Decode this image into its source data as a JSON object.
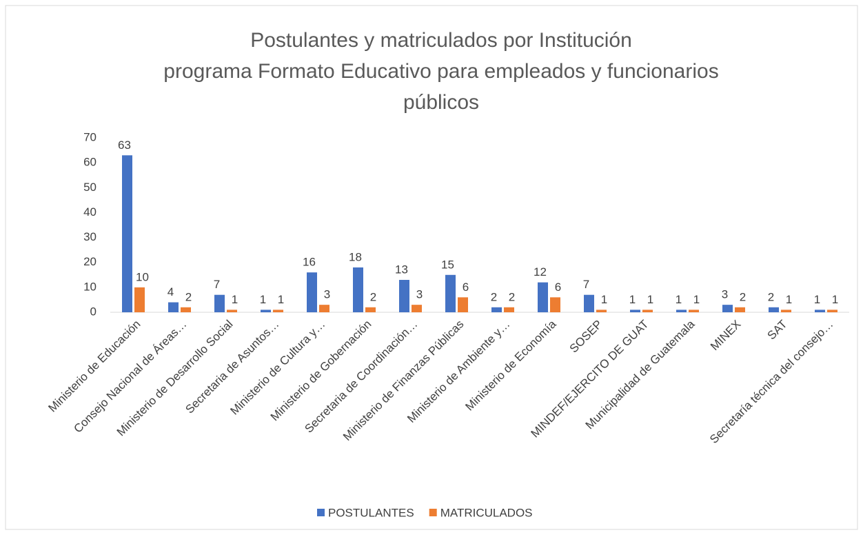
{
  "chart_data": {
    "type": "bar",
    "title": [
      "Postulantes y matriculados por Institución",
      "programa Formato Educativo para empleados y funcionarios",
      "públicos"
    ],
    "categories": [
      "Ministerio de Educación",
      "Consejo Nacional de Áreas…",
      "Ministerio de Desarrollo Social",
      "Secretaria de Asuntos…",
      "Ministerio de Cultura y…",
      "Ministerio de Gobernación",
      "Secretaria de Coordinación…",
      "Ministerio de Finanzas Públicas",
      "Ministerio de Ambiente y…",
      "Ministerio de Economía",
      "SOSEP",
      "MINDEF/EJERCITO DE GUAT",
      "Municipalidad de Guatemala",
      "MINEX",
      "SAT",
      "Secretaría técnica del consejo…"
    ],
    "series": [
      {
        "name": "POSTULANTES",
        "color": "#4472c4",
        "values": [
          63,
          4,
          7,
          1,
          16,
          18,
          13,
          15,
          2,
          12,
          7,
          1,
          1,
          3,
          2,
          1
        ]
      },
      {
        "name": "MATRICULADOS",
        "color": "#ed7d31",
        "values": [
          10,
          2,
          1,
          1,
          3,
          2,
          3,
          6,
          2,
          6,
          1,
          1,
          1,
          2,
          1,
          1
        ]
      }
    ],
    "ylim": [
      0,
      70
    ],
    "yticks": [
      0,
      10,
      20,
      30,
      40,
      50,
      60,
      70
    ],
    "grid": false,
    "legend": "bottom"
  }
}
